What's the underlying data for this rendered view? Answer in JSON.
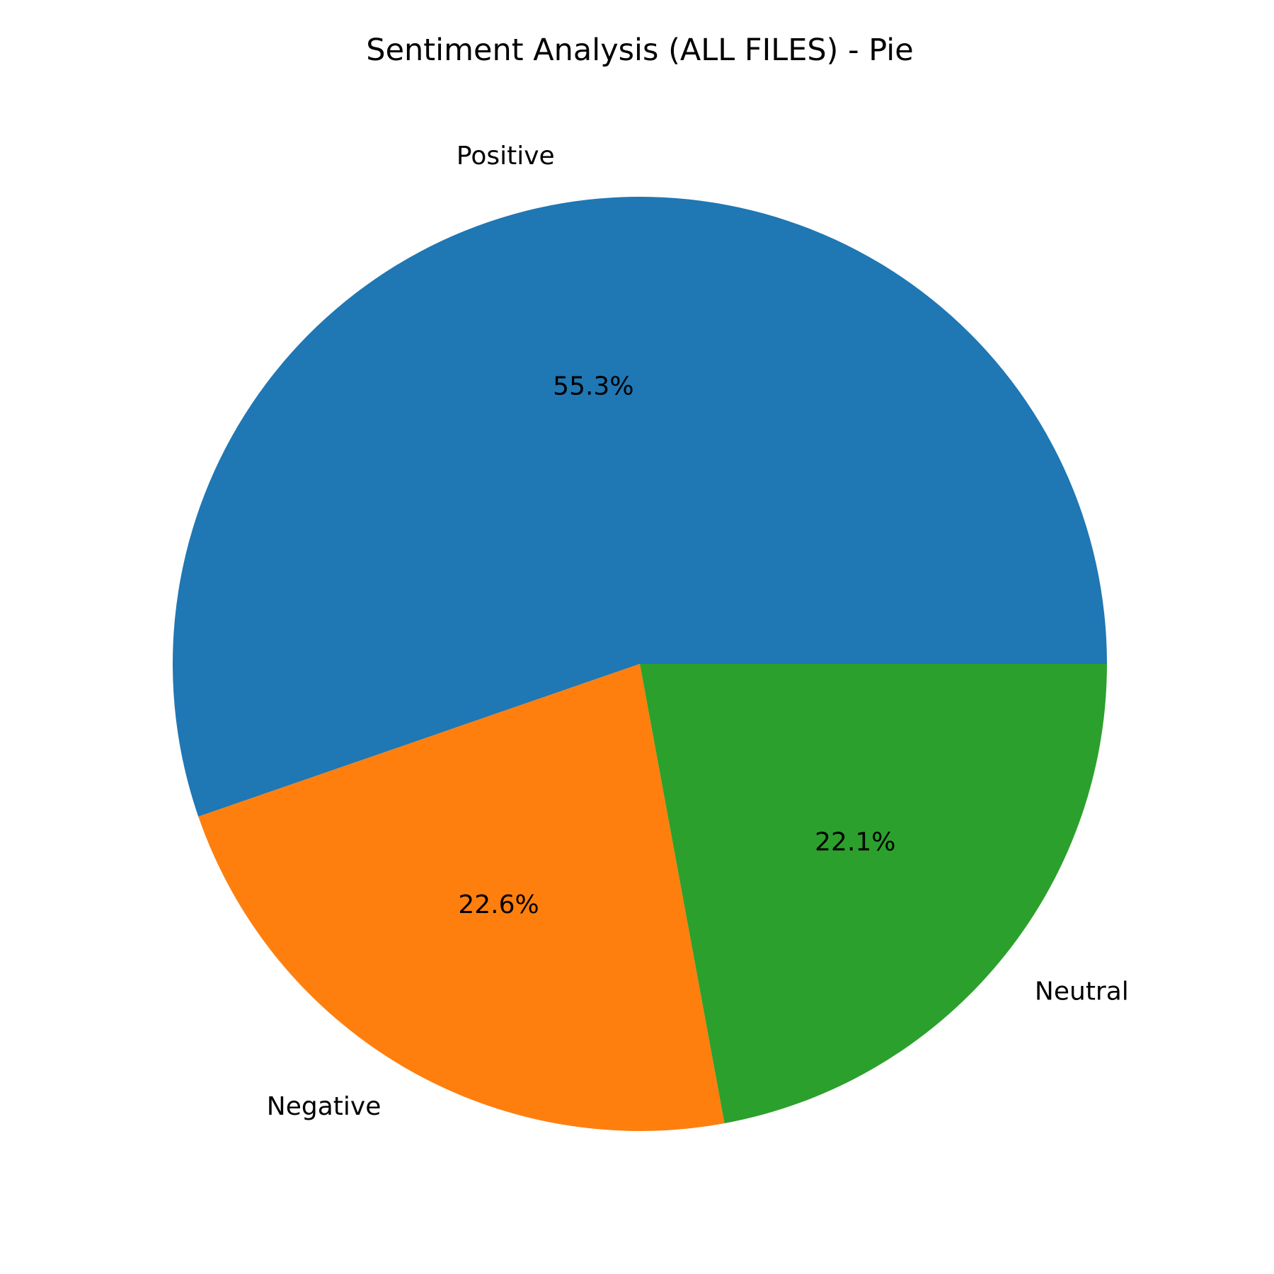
{
  "chart_data": {
    "type": "pie",
    "title": "Sentiment Analysis (ALL FILES) - Pie",
    "start_angle_deg": 0,
    "direction": "counterclockwise",
    "slices": [
      {
        "label": "Positive",
        "value": 55.3,
        "pct_label": "55.3%",
        "color": "#1f77b4"
      },
      {
        "label": "Negative",
        "value": 22.6,
        "pct_label": "22.6%",
        "color": "#ff7f0e"
      },
      {
        "label": "Neutral",
        "value": 22.1,
        "pct_label": "22.1%",
        "color": "#2ca02c"
      }
    ]
  }
}
